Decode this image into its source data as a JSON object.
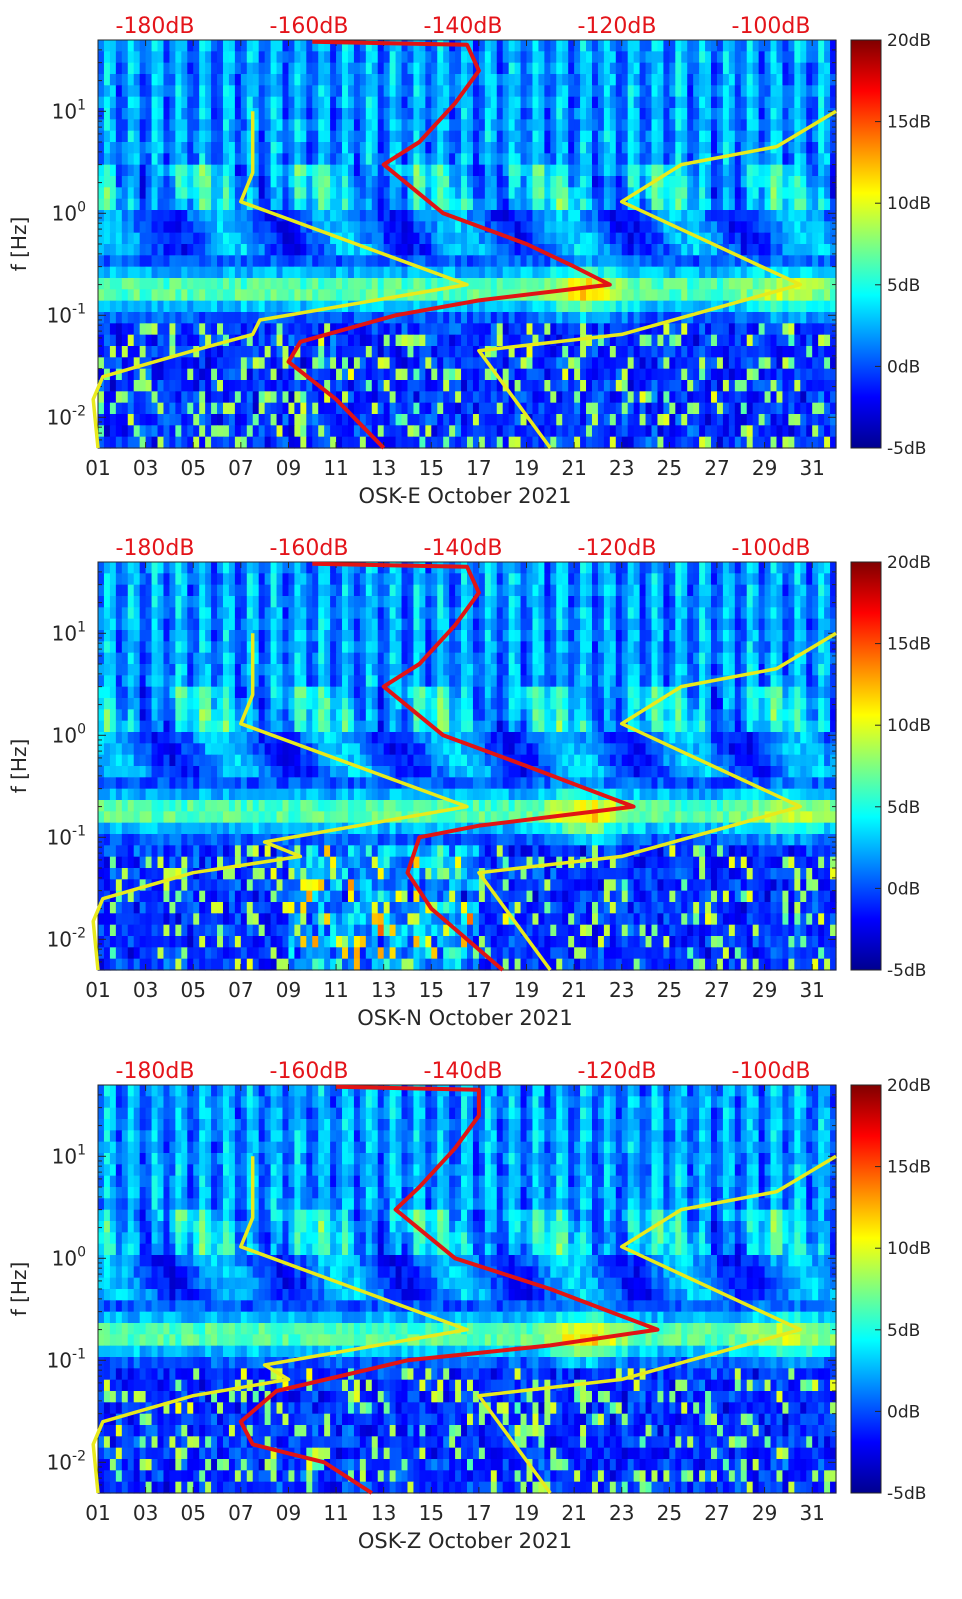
{
  "colors": {
    "noise_model": "#e8ea1c",
    "psd_curve": "#e11414",
    "top_axis_text": "#e4141a",
    "colormap": "jet"
  },
  "chart_data": [
    {
      "type": "heatmap",
      "station": "OSK-E",
      "xlabel": "OSK-E October 2021",
      "ylabel": "f [Hz]",
      "yscale": "log",
      "ylim": [
        0.005,
        50
      ],
      "xlim": [
        1,
        32
      ],
      "x_ticks": [
        "01",
        "03",
        "05",
        "07",
        "09",
        "11",
        "13",
        "15",
        "17",
        "19",
        "21",
        "23",
        "25",
        "27",
        "29",
        "31"
      ],
      "y_ticks": [
        "10-2",
        "10-1",
        "100",
        "101"
      ],
      "top_axis_ticks": [
        "-180dB",
        "-160dB",
        "-140dB",
        "-120dB",
        "-100dB"
      ],
      "colorbar": {
        "range": [
          -5,
          20
        ],
        "ticks": [
          "-5dB",
          "0dB",
          "5dB",
          "10dB",
          "15dB",
          "20dB"
        ]
      },
      "series": [
        {
          "kind": "noise-model-low",
          "points": [
            [
              1.0,
              0.005
            ],
            [
              0.8,
              0.015
            ],
            [
              1.2,
              0.025
            ],
            [
              5.0,
              0.045
            ],
            [
              7.5,
              0.065
            ],
            [
              7.8,
              0.09
            ],
            [
              16.5,
              0.2
            ],
            [
              7.0,
              1.3
            ],
            [
              7.5,
              2.5
            ],
            [
              7.5,
              10
            ]
          ]
        },
        {
          "kind": "noise-model-high",
          "points": [
            [
              20,
              0.005
            ],
            [
              17,
              0.045
            ],
            [
              23,
              0.065
            ],
            [
              30.5,
              0.2
            ],
            [
              23,
              1.3
            ],
            [
              25.5,
              3.0
            ],
            [
              29.5,
              4.5
            ],
            [
              32,
              10
            ]
          ]
        },
        {
          "kind": "psd-curve",
          "points": [
            [
              13.0,
              0.005
            ],
            [
              11.0,
              0.015
            ],
            [
              9.0,
              0.035
            ],
            [
              9.5,
              0.055
            ],
            [
              13.5,
              0.1
            ],
            [
              17.0,
              0.14
            ],
            [
              22.5,
              0.2
            ],
            [
              21.0,
              0.3
            ],
            [
              19.0,
              0.5
            ],
            [
              15.5,
              1.0
            ],
            [
              13.0,
              3.0
            ],
            [
              14.5,
              5.0
            ],
            [
              16.0,
              12
            ],
            [
              17.0,
              25
            ],
            [
              16.5,
              45
            ],
            [
              10.0,
              48
            ]
          ]
        }
      ]
    },
    {
      "type": "heatmap",
      "station": "OSK-N",
      "xlabel": "OSK-N October 2021",
      "ylabel": "f [Hz]",
      "yscale": "log",
      "ylim": [
        0.005,
        50
      ],
      "xlim": [
        1,
        32
      ],
      "x_ticks": [
        "01",
        "03",
        "05",
        "07",
        "09",
        "11",
        "13",
        "15",
        "17",
        "19",
        "21",
        "23",
        "25",
        "27",
        "29",
        "31"
      ],
      "y_ticks": [
        "10-2",
        "10-1",
        "100",
        "101"
      ],
      "top_axis_ticks": [
        "-180dB",
        "-160dB",
        "-140dB",
        "-120dB",
        "-100dB"
      ],
      "colorbar": {
        "range": [
          -5,
          20
        ],
        "ticks": [
          "-5dB",
          "0dB",
          "5dB",
          "10dB",
          "15dB",
          "20dB"
        ]
      },
      "series": [
        {
          "kind": "noise-model-low",
          "points": [
            [
              1.0,
              0.005
            ],
            [
              0.8,
              0.015
            ],
            [
              1.2,
              0.025
            ],
            [
              5.0,
              0.045
            ],
            [
              9.5,
              0.065
            ],
            [
              8.0,
              0.09
            ],
            [
              16.5,
              0.2
            ],
            [
              7.0,
              1.3
            ],
            [
              7.5,
              2.5
            ],
            [
              7.5,
              10
            ]
          ]
        },
        {
          "kind": "noise-model-high",
          "points": [
            [
              20,
              0.005
            ],
            [
              17,
              0.045
            ],
            [
              23,
              0.065
            ],
            [
              30.5,
              0.2
            ],
            [
              23,
              1.3
            ],
            [
              25.5,
              3.0
            ],
            [
              29.5,
              4.5
            ],
            [
              32,
              10
            ]
          ]
        },
        {
          "kind": "psd-curve",
          "points": [
            [
              18.0,
              0.005
            ],
            [
              15.0,
              0.02
            ],
            [
              14.0,
              0.045
            ],
            [
              14.5,
              0.1
            ],
            [
              17.0,
              0.13
            ],
            [
              23.5,
              0.2
            ],
            [
              21.5,
              0.3
            ],
            [
              19.0,
              0.5
            ],
            [
              15.5,
              1.0
            ],
            [
              13.0,
              3.0
            ],
            [
              14.5,
              5.0
            ],
            [
              16.0,
              12
            ],
            [
              17.0,
              25
            ],
            [
              16.5,
              45
            ],
            [
              10.0,
              48
            ]
          ]
        }
      ]
    },
    {
      "type": "heatmap",
      "station": "OSK-Z",
      "xlabel": "OSK-Z October 2021",
      "ylabel": "f [Hz]",
      "yscale": "log",
      "ylim": [
        0.005,
        50
      ],
      "xlim": [
        1,
        32
      ],
      "x_ticks": [
        "01",
        "03",
        "05",
        "07",
        "09",
        "11",
        "13",
        "15",
        "17",
        "19",
        "21",
        "23",
        "25",
        "27",
        "29",
        "31"
      ],
      "y_ticks": [
        "10-2",
        "10-1",
        "100",
        "101"
      ],
      "top_axis_ticks": [
        "-180dB",
        "-160dB",
        "-140dB",
        "-120dB",
        "-100dB"
      ],
      "colorbar": {
        "range": [
          -5,
          20
        ],
        "ticks": [
          "-5dB",
          "0dB",
          "5dB",
          "10dB",
          "15dB",
          "20dB"
        ]
      },
      "series": [
        {
          "kind": "noise-model-low",
          "points": [
            [
              1.0,
              0.005
            ],
            [
              0.8,
              0.015
            ],
            [
              1.2,
              0.025
            ],
            [
              5.0,
              0.045
            ],
            [
              9.0,
              0.065
            ],
            [
              8.0,
              0.09
            ],
            [
              16.5,
              0.2
            ],
            [
              7.0,
              1.3
            ],
            [
              7.5,
              2.5
            ],
            [
              7.5,
              10
            ]
          ]
        },
        {
          "kind": "noise-model-high",
          "points": [
            [
              20,
              0.005
            ],
            [
              17,
              0.045
            ],
            [
              23,
              0.065
            ],
            [
              30.5,
              0.2
            ],
            [
              23,
              1.3
            ],
            [
              25.5,
              3.0
            ],
            [
              29.5,
              4.5
            ],
            [
              32,
              10
            ]
          ]
        },
        {
          "kind": "psd-curve",
          "points": [
            [
              12.5,
              0.005
            ],
            [
              10.5,
              0.01
            ],
            [
              7.5,
              0.015
            ],
            [
              7.0,
              0.025
            ],
            [
              8.5,
              0.05
            ],
            [
              14.0,
              0.1
            ],
            [
              20.0,
              0.14
            ],
            [
              24.5,
              0.2
            ],
            [
              22.5,
              0.3
            ],
            [
              20.0,
              0.5
            ],
            [
              16.0,
              1.0
            ],
            [
              13.5,
              3.0
            ],
            [
              14.5,
              5.0
            ],
            [
              16.0,
              12
            ],
            [
              17.0,
              25
            ],
            [
              17.0,
              45
            ],
            [
              11.0,
              48
            ]
          ]
        }
      ]
    }
  ]
}
